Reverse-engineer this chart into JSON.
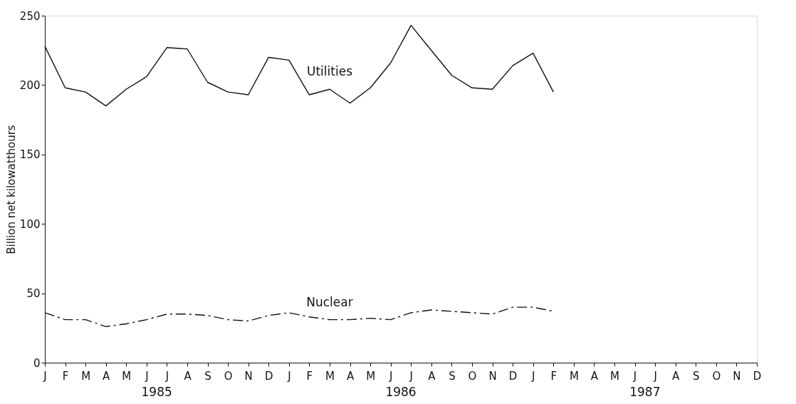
{
  "chart_data": {
    "type": "line",
    "ylabel": "Billion net kilowatthours",
    "categories": [
      "J",
      "F",
      "M",
      "A",
      "M",
      "J",
      "J",
      "A",
      "S",
      "O",
      "N",
      "D",
      "J",
      "F",
      "M",
      "A",
      "M",
      "J",
      "J",
      "A",
      "S",
      "O",
      "N",
      "D",
      "J",
      "F",
      "M",
      "A",
      "M",
      "J",
      "J",
      "A",
      "S",
      "O",
      "N",
      "D"
    ],
    "series": [
      {
        "name": "Utilities",
        "color": "#111111",
        "line_style": "solid",
        "values": [
          228,
          198,
          195,
          185,
          197,
          206,
          227,
          226,
          202,
          195,
          193,
          220,
          218,
          193,
          197,
          187,
          198,
          216,
          243,
          225,
          207,
          198,
          197,
          214,
          223,
          195,
          null,
          null,
          null,
          null,
          null,
          null,
          null,
          null,
          null,
          null
        ]
      },
      {
        "name": "Nuclear",
        "color": "#111111",
        "line_style": "dashed",
        "values": [
          36,
          31,
          31,
          26,
          28,
          31,
          35,
          35,
          34,
          31,
          30,
          34,
          36,
          33,
          31,
          31,
          32,
          31,
          36,
          38,
          37,
          36,
          35,
          40,
          40,
          37,
          null,
          null,
          null,
          null,
          null,
          null,
          null,
          null,
          null,
          null
        ]
      }
    ],
    "ylim": [
      0,
      250
    ],
    "yticks": [
      0,
      50,
      100,
      150,
      200,
      250
    ],
    "annotations": [
      "1985",
      "1986",
      "1987"
    ],
    "marker": "none"
  }
}
